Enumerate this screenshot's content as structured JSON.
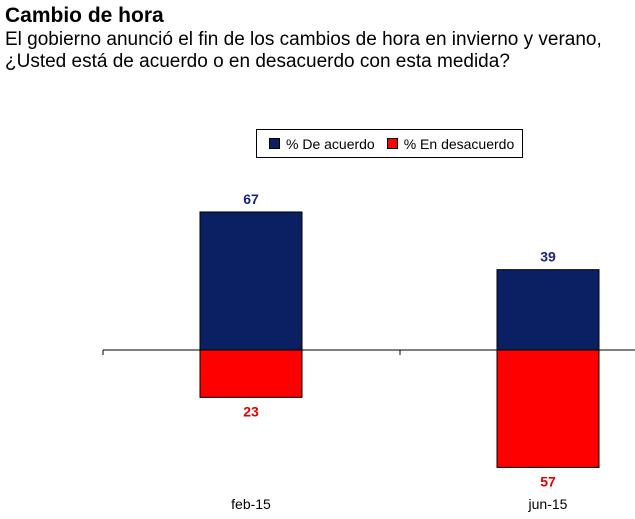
{
  "title": "Cambio de hora",
  "subtitle": "El gobierno anunció el fin de los cambios de hora en invierno y verano, ¿Usted está de acuerdo o en desacuerdo con esta medida?",
  "colors": {
    "acuerdo": "#0B1F63",
    "desacuerdo": "#FF0000",
    "acuerdo_label": "#1A237E",
    "desacuerdo_label": "#E00000"
  },
  "chart_data": {
    "type": "bar",
    "title": "Cambio de hora",
    "categories": [
      "feb-15",
      "jun-15"
    ],
    "series": [
      {
        "name": "% De acuerdo",
        "values": [
          67,
          39
        ],
        "direction": "up"
      },
      {
        "name": "% En desacuerdo",
        "values": [
          23,
          57
        ],
        "direction": "down"
      }
    ],
    "legend": "top-center",
    "grid": false
  }
}
